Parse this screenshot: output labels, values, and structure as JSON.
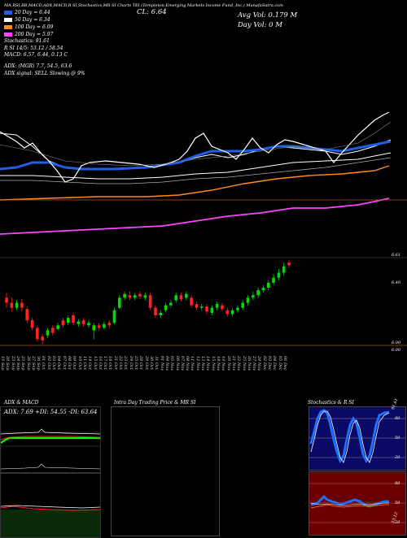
{
  "header": {
    "top_line": "MA,RSI,BB,MACD,ADX,MACD,R     SI,Stochastics,MR     SI     Charts TEI     (Templeton Emerging Markets Income Fund, Inc.) MunafaSutra.com",
    "close_label": "CL: 6.64",
    "avg_vol_label": "Avg Vol: 0.179 M",
    "day_vol_label": "Day Vol: 0   M",
    "adx_line": "ADX:                               (MGR) 7.7,  54.5,  63.6",
    "adx_signal": "ADX  signal: SELL  Slowing @ 9%",
    "ma_legend": [
      {
        "label": "20  Day  = 6.44",
        "color": "#1f5fe8"
      },
      {
        "label": "50  Day  = 6.34",
        "color": "#ffffff"
      },
      {
        "label": "100  Day  = 6.09",
        "color": "#ff8c1a"
      },
      {
        "label": "200  Day  = 5.97",
        "color": "#ff44ff"
      }
    ],
    "stoch_line": "Stochastics: 91.61",
    "rsi_line": "R                  SI 14/5: 53.12 / 58.54",
    "macd_line": "MACD: 6.57, 6.44, 0.13 C"
  },
  "price_axis": {
    "right_labels": [
      {
        "text": "6.61",
        "value": 6.61
      },
      {
        "text": "6.40",
        "value": 6.4
      },
      {
        "text": "6.00",
        "value": 6.0
      },
      {
        "text": "6.00",
        "value": 6.0
      }
    ]
  },
  "dates": [
    "19 Sep",
    "20 Sep",
    "23 Sep",
    "24 Sep",
    "25 Sep",
    "26 Sep",
    "27 Sep",
    "30 Sep",
    "01 Oct",
    "02 Oct",
    "03 Oct",
    "04 Oct",
    "07 Oct",
    "08 Oct",
    "09 Oct",
    "10 Oct",
    "11 Oct",
    "14 Oct",
    "15 Oct",
    "16 Oct",
    "17 Oct",
    "18 Oct",
    "21 Oct",
    "22 Oct",
    "23 Oct",
    "24 Oct",
    "25 Oct",
    "28 Oct",
    "29 Oct",
    "30 Oct",
    "31 Oct",
    "01 Nov",
    "04 Nov",
    "05 Nov",
    "06 Nov",
    "07 Nov",
    "08 Nov",
    "11 Nov",
    "12 Nov",
    "13 Nov",
    "14 Nov",
    "15 Nov",
    "18 Nov",
    "19 Nov",
    "20 Nov",
    "21 Nov",
    "22 Nov",
    "25 Nov",
    "26 Nov",
    "27 Nov",
    "29 Nov",
    "02 Dec",
    "03 Dec",
    "04 Dec",
    "05 Dec",
    "06 Dec"
  ],
  "panels": {
    "adx": {
      "title": "ADX  & MACD",
      "reading": "ADX: 7.69  +DI: 54.55 -DI: 63.64",
      "colors": {
        "plus_di": "#00ff00",
        "minus_di": "#ff2020",
        "adx": "#ffffff"
      }
    },
    "intraday": {
      "title": "Intra  Day  Trading  Price  & MR                    SI"
    },
    "stochastics": {
      "title": "Stochastics & R                   SI",
      "labels_top": [
        "80",
        "50",
        "20"
      ],
      "labels_bottom": [
        "80",
        "50",
        "20"
      ],
      "side_top": "91.61",
      "side_bottom": "53.12"
    }
  },
  "chart_data": {
    "type": "candlestick",
    "categories": [
      "19 Sep",
      "20 Sep",
      "23 Sep",
      "24 Sep",
      "25 Sep",
      "26 Sep",
      "27 Sep",
      "30 Sep",
      "01 Oct",
      "02 Oct",
      "03 Oct",
      "04 Oct",
      "07 Oct",
      "08 Oct",
      "09 Oct",
      "10 Oct",
      "11 Oct",
      "14 Oct",
      "15 Oct",
      "16 Oct",
      "17 Oct",
      "18 Oct",
      "21 Oct",
      "22 Oct",
      "23 Oct",
      "24 Oct",
      "25 Oct",
      "28 Oct",
      "29 Oct",
      "30 Oct",
      "31 Oct",
      "01 Nov",
      "04 Nov",
      "05 Nov",
      "06 Nov",
      "07 Nov",
      "08 Nov",
      "11 Nov",
      "12 Nov",
      "13 Nov",
      "14 Nov",
      "15 Nov",
      "18 Nov",
      "19 Nov",
      "20 Nov",
      "21 Nov",
      "22 Nov",
      "25 Nov",
      "26 Nov",
      "27 Nov",
      "29 Nov",
      "02 Dec",
      "03 Dec",
      "04 Dec",
      "05 Dec",
      "06 Dec"
    ],
    "candles": [
      {
        "o": 6.38,
        "c": 6.34,
        "h": 6.42,
        "l": 6.3
      },
      {
        "o": 6.34,
        "c": 6.3,
        "h": 6.38,
        "l": 6.27
      },
      {
        "o": 6.3,
        "c": 6.34,
        "h": 6.36,
        "l": 6.28
      },
      {
        "o": 6.34,
        "c": 6.3,
        "h": 6.37,
        "l": 6.27
      },
      {
        "o": 6.29,
        "c": 6.2,
        "h": 6.31,
        "l": 6.18
      },
      {
        "o": 6.2,
        "c": 6.14,
        "h": 6.22,
        "l": 6.12
      },
      {
        "o": 6.14,
        "c": 6.05,
        "h": 6.16,
        "l": 6.03
      },
      {
        "o": 6.07,
        "c": 6.04,
        "h": 6.09,
        "l": 6.01
      },
      {
        "o": 6.08,
        "c": 6.12,
        "h": 6.14,
        "l": 6.06
      },
      {
        "o": 6.14,
        "c": 6.1,
        "h": 6.16,
        "l": 6.08
      },
      {
        "o": 6.13,
        "c": 6.16,
        "h": 6.18,
        "l": 6.12
      },
      {
        "o": 6.2,
        "c": 6.16,
        "h": 6.22,
        "l": 6.14
      },
      {
        "o": 6.18,
        "c": 6.22,
        "h": 6.24,
        "l": 6.16
      },
      {
        "o": 6.24,
        "c": 6.18,
        "h": 6.26,
        "l": 6.16
      },
      {
        "o": 6.17,
        "c": 6.19,
        "h": 6.21,
        "l": 6.15
      },
      {
        "o": 6.2,
        "c": 6.17,
        "h": 6.22,
        "l": 6.15
      },
      {
        "o": 6.16,
        "c": 6.18,
        "h": 6.2,
        "l": 6.14
      },
      {
        "o": 6.12,
        "c": 6.16,
        "h": 6.18,
        "l": 6.05
      },
      {
        "o": 6.16,
        "c": 6.14,
        "h": 6.18,
        "l": 6.12
      },
      {
        "o": 6.14,
        "c": 6.17,
        "h": 6.19,
        "l": 6.13
      },
      {
        "o": 6.18,
        "c": 6.16,
        "h": 6.2,
        "l": 6.14
      },
      {
        "o": 6.18,
        "c": 6.28,
        "h": 6.3,
        "l": 6.17
      },
      {
        "o": 6.3,
        "c": 6.38,
        "h": 6.4,
        "l": 6.29
      },
      {
        "o": 6.38,
        "c": 6.41,
        "h": 6.43,
        "l": 6.36
      },
      {
        "o": 6.4,
        "c": 6.38,
        "h": 6.43,
        "l": 6.36
      },
      {
        "o": 6.38,
        "c": 6.4,
        "h": 6.42,
        "l": 6.36
      },
      {
        "o": 6.41,
        "c": 6.39,
        "h": 6.43,
        "l": 6.37
      },
      {
        "o": 6.38,
        "c": 6.4,
        "h": 6.42,
        "l": 6.36
      },
      {
        "o": 6.4,
        "c": 6.3,
        "h": 6.42,
        "l": 6.28
      },
      {
        "o": 6.3,
        "c": 6.24,
        "h": 6.32,
        "l": 6.22
      },
      {
        "o": 6.24,
        "c": 6.26,
        "h": 6.28,
        "l": 6.22
      },
      {
        "o": 6.28,
        "c": 6.32,
        "h": 6.34,
        "l": 6.26
      },
      {
        "o": 6.32,
        "c": 6.34,
        "h": 6.36,
        "l": 6.3
      },
      {
        "o": 6.36,
        "c": 6.4,
        "h": 6.42,
        "l": 6.34
      },
      {
        "o": 6.4,
        "c": 6.37,
        "h": 6.42,
        "l": 6.35
      },
      {
        "o": 6.38,
        "c": 6.41,
        "h": 6.43,
        "l": 6.36
      },
      {
        "o": 6.38,
        "c": 6.32,
        "h": 6.4,
        "l": 6.3
      },
      {
        "o": 6.33,
        "c": 6.3,
        "h": 6.35,
        "l": 6.28
      },
      {
        "o": 6.3,
        "c": 6.31,
        "h": 6.33,
        "l": 6.28
      },
      {
        "o": 6.31,
        "c": 6.27,
        "h": 6.33,
        "l": 6.25
      },
      {
        "o": 6.26,
        "c": 6.3,
        "h": 6.32,
        "l": 6.24
      },
      {
        "o": 6.3,
        "c": 6.33,
        "h": 6.35,
        "l": 6.28
      },
      {
        "o": 6.32,
        "c": 6.29,
        "h": 6.34,
        "l": 6.27
      },
      {
        "o": 6.28,
        "c": 6.25,
        "h": 6.3,
        "l": 6.23
      },
      {
        "o": 6.25,
        "c": 6.28,
        "h": 6.3,
        "l": 6.23
      },
      {
        "o": 6.28,
        "c": 6.3,
        "h": 6.32,
        "l": 6.26
      },
      {
        "o": 6.3,
        "c": 6.34,
        "h": 6.36,
        "l": 6.28
      },
      {
        "o": 6.34,
        "c": 6.38,
        "h": 6.4,
        "l": 6.32
      },
      {
        "o": 6.38,
        "c": 6.4,
        "h": 6.43,
        "l": 6.36
      },
      {
        "o": 6.4,
        "c": 6.44,
        "h": 6.46,
        "l": 6.38
      },
      {
        "o": 6.44,
        "c": 6.46,
        "h": 6.48,
        "l": 6.42
      },
      {
        "o": 6.46,
        "c": 6.5,
        "h": 6.52,
        "l": 6.44
      },
      {
        "o": 6.5,
        "c": 6.54,
        "h": 6.57,
        "l": 6.48
      },
      {
        "o": 6.54,
        "c": 6.58,
        "h": 6.61,
        "l": 6.52
      },
      {
        "o": 6.58,
        "c": 6.63,
        "h": 6.66,
        "l": 6.56
      },
      {
        "o": 6.66,
        "c": 6.64,
        "h": 6.68,
        "l": 6.62
      }
    ],
    "ylim": [
      6.0,
      6.7
    ],
    "colors": {
      "up": "#00dd00",
      "down": "#ff2222"
    }
  }
}
